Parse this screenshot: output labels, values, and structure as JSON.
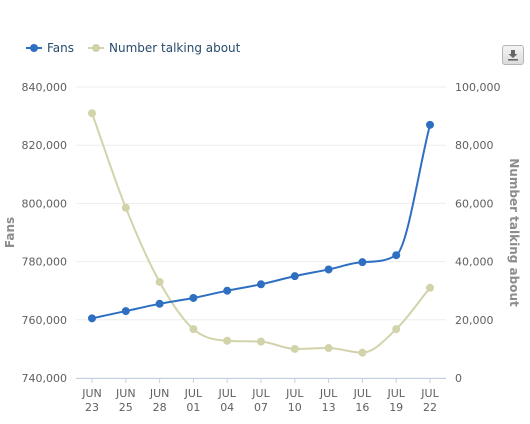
{
  "legend": {
    "fans_label": "Fans",
    "talking_label": "Number talking about"
  },
  "export_icon": "download-icon",
  "colors": {
    "fans": "#2f6fc1",
    "talking": "#d3d3ab",
    "grid": "#eeeeee",
    "axis_text": "#606060",
    "axis_title": "#8c8c8c"
  },
  "chart_data": {
    "type": "line",
    "categories": [
      [
        "JUN",
        "23"
      ],
      [
        "JUN",
        "25"
      ],
      [
        "JUN",
        "28"
      ],
      [
        "JUL",
        "01"
      ],
      [
        "JUL",
        "04"
      ],
      [
        "JUL",
        "07"
      ],
      [
        "JUL",
        "10"
      ],
      [
        "JUL",
        "13"
      ],
      [
        "JUL",
        "16"
      ],
      [
        "JUL",
        "19"
      ],
      [
        "JUL",
        "22"
      ]
    ],
    "series": [
      {
        "name": "Fans",
        "axis": "left",
        "values": [
          760500,
          763000,
          765500,
          767500,
          770000,
          772200,
          775000,
          777300,
          779800,
          782200,
          827000
        ]
      },
      {
        "name": "Number talking about",
        "axis": "right",
        "values": [
          91000,
          58500,
          33000,
          16800,
          12800,
          12500,
          10000,
          10300,
          8700,
          16800,
          31000
        ]
      }
    ],
    "ylabel": "Fans",
    "y2label": "Number talking about",
    "ylim": [
      740000,
      840000
    ],
    "y2lim": [
      0,
      100000
    ],
    "yticks": [
      "740,000",
      "760,000",
      "780,000",
      "800,000",
      "820,000",
      "840,000"
    ],
    "y2ticks": [
      "0",
      "20,000",
      "40,000",
      "60,000",
      "80,000",
      "100,000"
    ],
    "grid": true,
    "legend_position": "top-left"
  }
}
